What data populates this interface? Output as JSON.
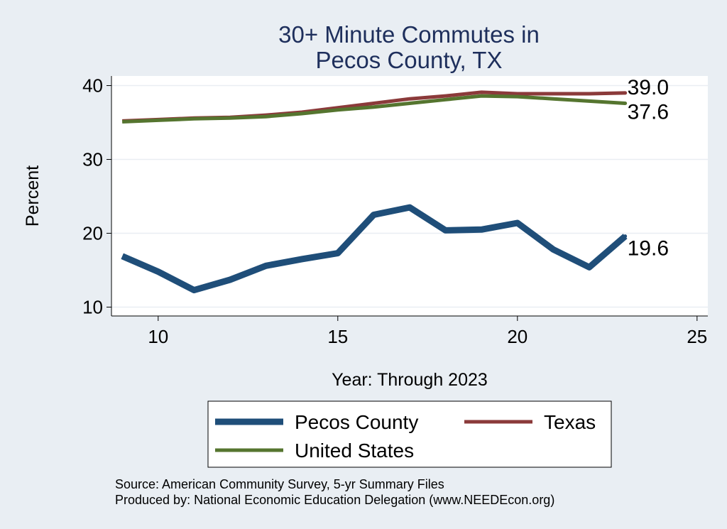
{
  "chart_data": {
    "type": "line",
    "title": [
      "30+ Minute Commutes in",
      "Pecos County, TX"
    ],
    "xlabel": "Year: Through 2023",
    "ylabel": "Percent",
    "xlim": [
      8.7,
      25.3
    ],
    "ylim": [
      8.8,
      41.3
    ],
    "xticks": [
      10,
      15,
      20,
      25
    ],
    "yticks": [
      10,
      20,
      30,
      40
    ],
    "grid": true,
    "legend_position": "bottom",
    "series": [
      {
        "name": "Pecos County",
        "color": "#1f4e79",
        "x": [
          9,
          10,
          11,
          12,
          13,
          14,
          15,
          16,
          17,
          18,
          19,
          20,
          21,
          22,
          23
        ],
        "y": [
          16.9,
          14.8,
          12.3,
          13.7,
          15.6,
          16.5,
          17.3,
          22.5,
          23.5,
          20.4,
          20.5,
          21.4,
          17.8,
          15.4,
          19.6
        ],
        "end_label": "19.6"
      },
      {
        "name": "Texas",
        "color": "#8b3a3a",
        "x": [
          9,
          10,
          11,
          12,
          13,
          14,
          15,
          16,
          17,
          18,
          19,
          20,
          21,
          22,
          23
        ],
        "y": [
          35.2,
          35.4,
          35.6,
          35.7,
          36.0,
          36.4,
          37.0,
          37.6,
          38.2,
          38.6,
          39.1,
          38.9,
          38.9,
          38.9,
          39.0
        ],
        "end_label": "39.0"
      },
      {
        "name": "United States",
        "color": "#55752f",
        "x": [
          9,
          10,
          11,
          12,
          13,
          14,
          15,
          16,
          17,
          18,
          19,
          20,
          21,
          22,
          23
        ],
        "y": [
          35.1,
          35.3,
          35.5,
          35.6,
          35.8,
          36.2,
          36.7,
          37.1,
          37.6,
          38.1,
          38.6,
          38.5,
          38.2,
          37.9,
          37.6
        ],
        "end_label": "37.6"
      }
    ],
    "legend_order": [
      "Pecos County",
      "Texas",
      "United States"
    ],
    "notes": [
      "Source: American Community Survey, 5-yr Summary Files",
      "Produced by: National Economic Education Delegation (www.NEEDEcon.org)"
    ]
  }
}
